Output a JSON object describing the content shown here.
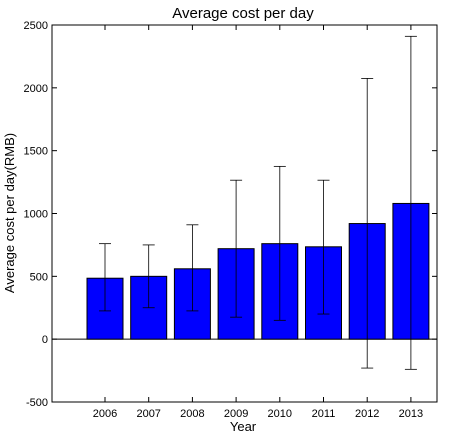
{
  "chart_data": {
    "type": "bar",
    "title": "Average cost per day",
    "xlabel": "Year",
    "ylabel": "Average cost per day(RMB)",
    "categories": [
      "2006",
      "2007",
      "2008",
      "2009",
      "2010",
      "2011",
      "2012",
      "2013"
    ],
    "values": [
      485,
      500,
      560,
      720,
      760,
      735,
      920,
      1080
    ],
    "error_low": [
      225,
      250,
      225,
      175,
      150,
      200,
      -230,
      -240
    ],
    "error_high": [
      760,
      750,
      910,
      1265,
      1375,
      1265,
      2075,
      2410
    ],
    "ylim": [
      -500,
      2500
    ],
    "yticks": [
      -500,
      0,
      500,
      1000,
      1500,
      2000,
      2500
    ],
    "grid": false,
    "bar_color": "#0000ff"
  }
}
